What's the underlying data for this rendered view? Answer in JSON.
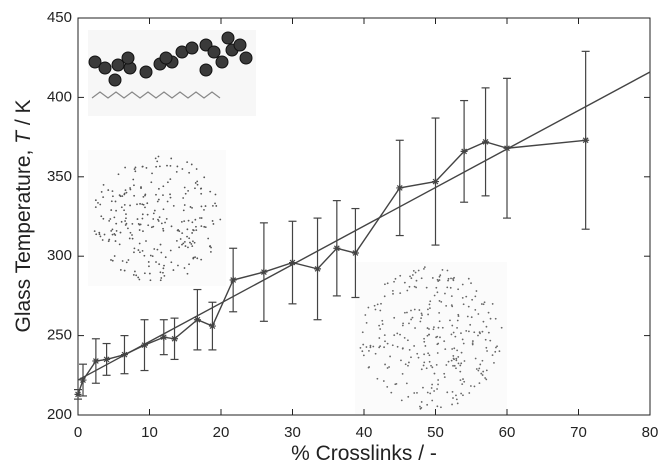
{
  "chart_data": {
    "type": "line",
    "xlabel": "% Crosslinks / -",
    "ylabel": [
      "Glass Temperature, ",
      "T",
      " / K"
    ],
    "xlim": [
      0,
      80
    ],
    "ylim": [
      200,
      450
    ],
    "xticks": [
      0,
      10,
      20,
      30,
      40,
      50,
      60,
      70,
      80
    ],
    "yticks": [
      200,
      250,
      300,
      350,
      400,
      450
    ],
    "grid": false,
    "series": [
      {
        "color": "#444444",
        "x": [
          0,
          0.7,
          2.5,
          4,
          6.5,
          9.3,
          12,
          13.5,
          16.7,
          18.8,
          21.7,
          26,
          30,
          33.5,
          36.2,
          38.8,
          45,
          50,
          54,
          57,
          60,
          71
        ],
        "values": [
          213,
          222,
          234,
          235,
          238,
          244,
          249,
          248,
          260,
          256,
          285,
          290,
          296,
          292,
          305,
          302,
          343,
          347,
          366,
          372,
          368,
          373
        ],
        "errors": [
          3,
          10,
          14,
          10,
          12,
          16,
          11,
          13,
          19,
          15,
          20,
          31,
          26,
          32,
          30,
          28,
          30,
          40,
          32,
          34,
          44,
          56
        ]
      },
      {
        "color": "#444444",
        "x": [
          0,
          80
        ],
        "values": [
          222,
          416
        ]
      }
    ]
  }
}
